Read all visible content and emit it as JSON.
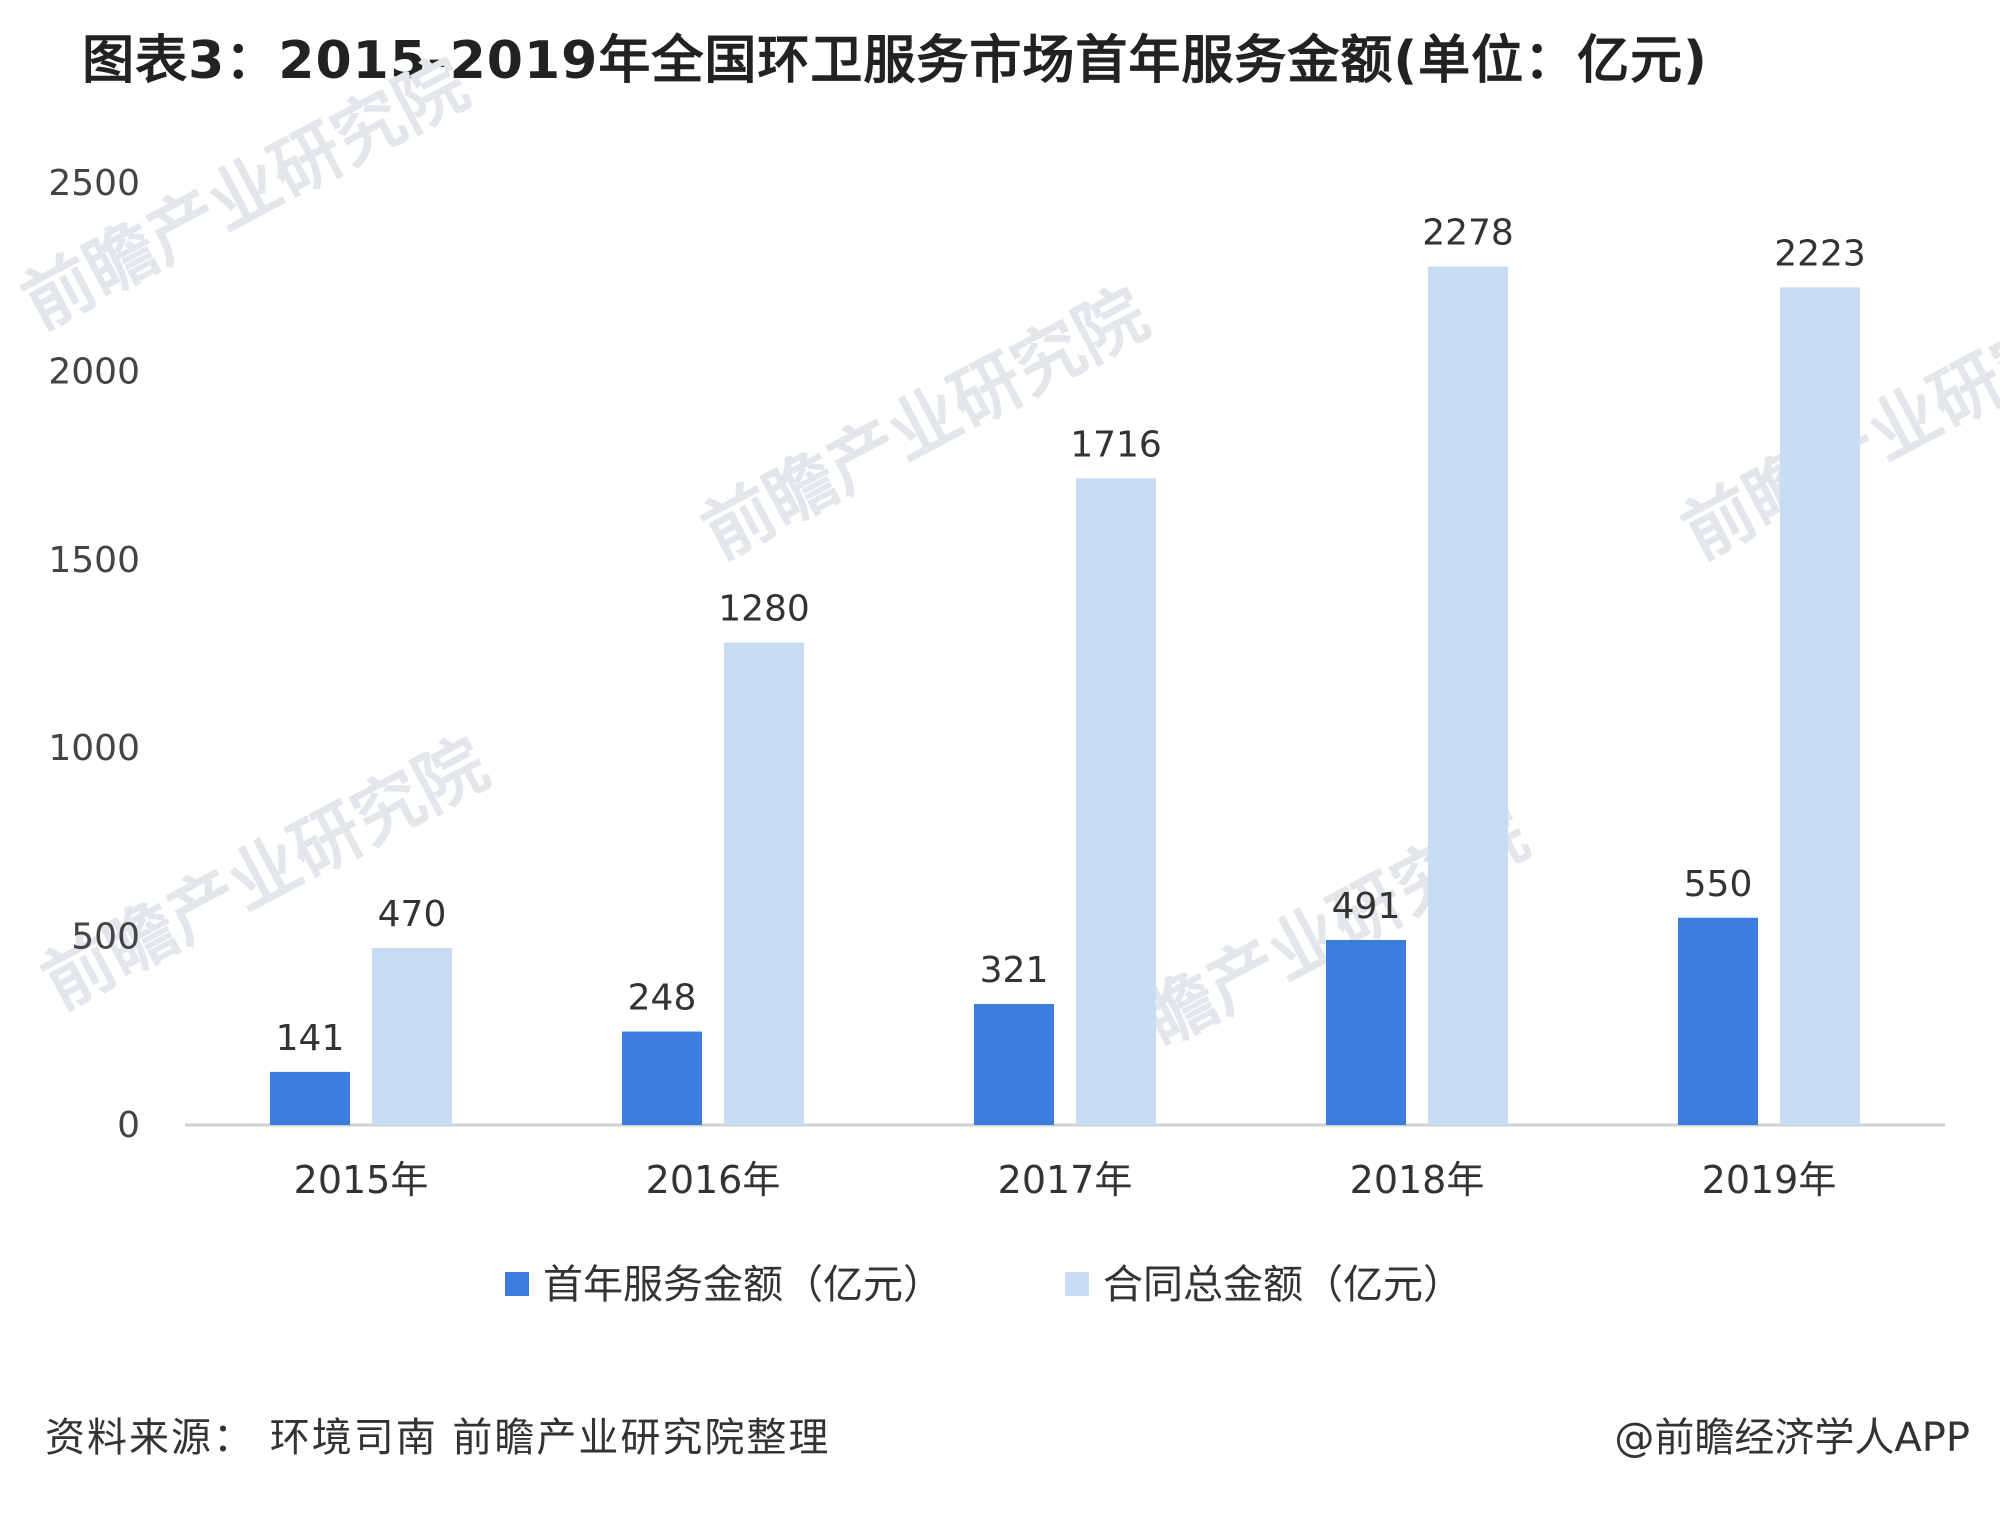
{
  "chart_data": {
    "type": "bar",
    "title": "图表3：2015-2019年全国环卫服务市场首年服务金额(单位：亿元)",
    "categories": [
      "2015年",
      "2016年",
      "2017年",
      "2018年",
      "2019年"
    ],
    "series": [
      {
        "name": "首年服务金额（亿元）",
        "values": [
          141,
          248,
          321,
          491,
          550
        ],
        "color": "#3b7ddd"
      },
      {
        "name": "合同总金额（亿元）",
        "values": [
          470,
          1280,
          1716,
          2278,
          2223
        ],
        "color": "#c9dcf5"
      }
    ],
    "yticks": [
      "0",
      "500",
      "1000",
      "1500",
      "2000",
      "2500"
    ],
    "ylim": [
      0,
      2500
    ],
    "grid": false,
    "legend": "bottom"
  },
  "footer": {
    "source": "资料来源： 环境司南 前瞻产业研究院整理",
    "brand": "@前瞻经济学人APP"
  },
  "watermark": {
    "text": "前瞻产业研究院"
  }
}
